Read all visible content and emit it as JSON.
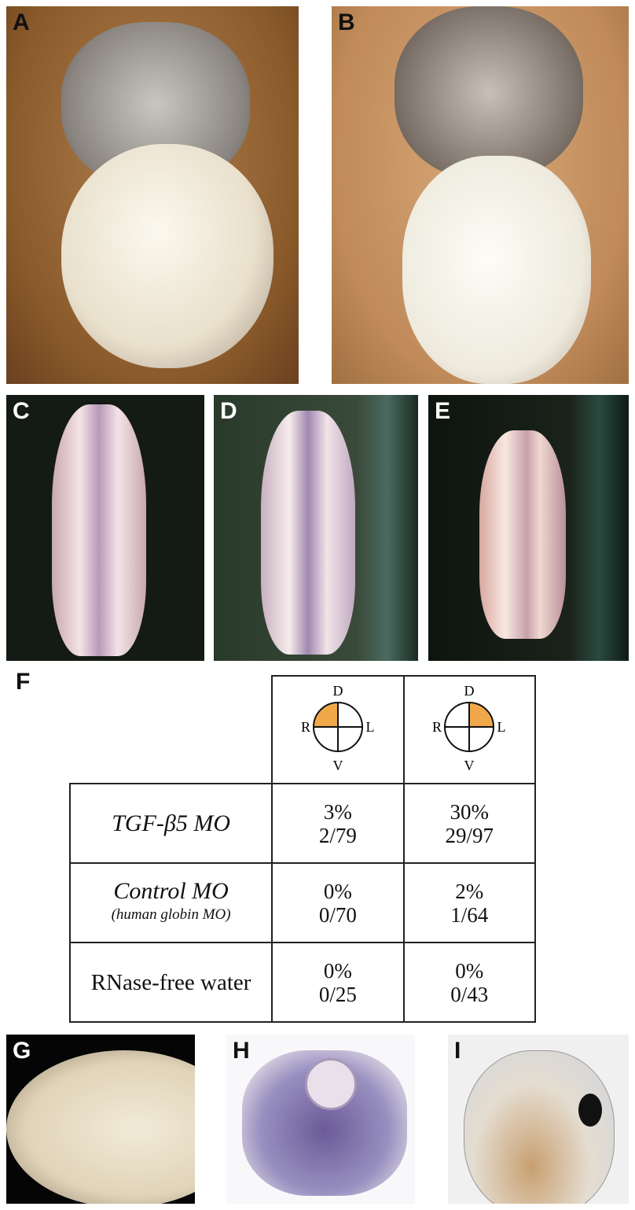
{
  "panels": {
    "A": "A",
    "B": "B",
    "C": "C",
    "D": "D",
    "E": "E",
    "F": "F",
    "G": "G",
    "H": "H",
    "I": "I"
  },
  "table": {
    "header": [
      {
        "D": "D",
        "R": "R",
        "L": "L",
        "V": "V",
        "highlight_quadrant": "dorsal-right"
      },
      {
        "D": "D",
        "R": "R",
        "L": "L",
        "V": "V",
        "highlight_quadrant": "dorsal-left"
      }
    ],
    "highlight_color": "#f0a848",
    "rows": [
      {
        "label": "TGF-β5 MO",
        "sublabel": "",
        "cells": [
          {
            "pct": "3%",
            "frac": "2/79"
          },
          {
            "pct": "30%",
            "frac": "29/97"
          }
        ]
      },
      {
        "label": "Control MO",
        "sublabel": "(human globin MO)",
        "cells": [
          {
            "pct": "0%",
            "frac": "0/70"
          },
          {
            "pct": "2%",
            "frac": "1/64"
          }
        ]
      },
      {
        "label": "RNase-free water",
        "sublabel": "",
        "cells": [
          {
            "pct": "0%",
            "frac": "0/25"
          },
          {
            "pct": "0%",
            "frac": "0/43"
          }
        ]
      }
    ]
  }
}
